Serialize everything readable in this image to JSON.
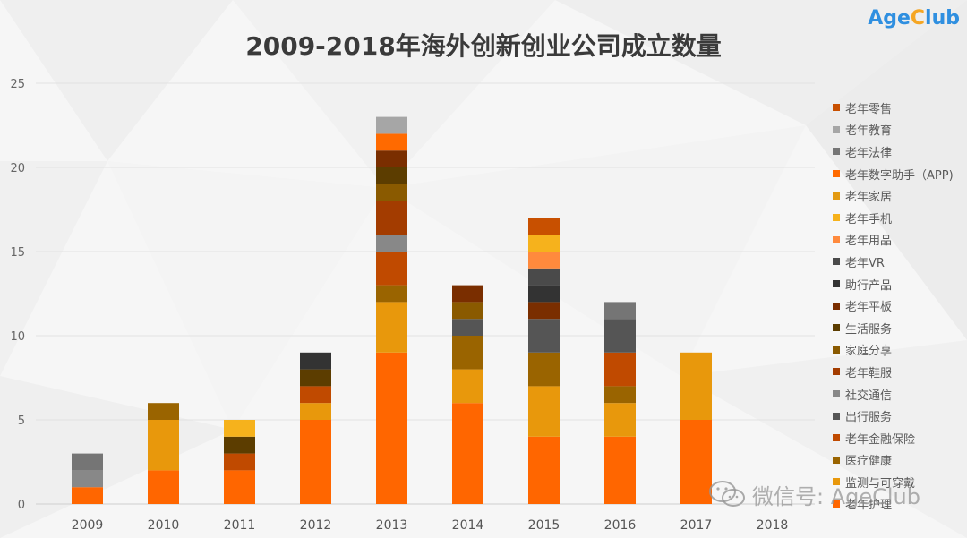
{
  "title": "2009-2018年海外创新创业公司成立数量",
  "brand": {
    "prefix": "Age",
    "accent": "C",
    "suffix": "lub"
  },
  "watermark": {
    "text": "微信号: AgeClub",
    "icon": "wechat-icon"
  },
  "colors": {
    "brand_blue": "#2f8fe0",
    "brand_orange": "#f5a623",
    "title": "#3a3a3a"
  },
  "chart_data": {
    "type": "bar",
    "stacked": true,
    "title": "2009-2018年海外创新创业公司成立数量",
    "categories": [
      "2009",
      "2010",
      "2011",
      "2012",
      "2013",
      "2014",
      "2015",
      "2016",
      "2017",
      "2018"
    ],
    "ylim": [
      0,
      25
    ],
    "yticks": [
      0,
      5,
      10,
      15,
      20,
      25
    ],
    "grid": true,
    "legend_position": "right",
    "series": [
      {
        "name": "老年护理",
        "color": "#ff6600",
        "values": [
          1,
          2,
          2,
          5,
          9,
          6,
          4,
          4,
          5,
          0
        ]
      },
      {
        "name": "监测与可穿戴",
        "color": "#e8980c",
        "values": [
          0,
          3,
          0,
          1,
          3,
          2,
          3,
          2,
          4,
          0
        ]
      },
      {
        "name": "医疗健康",
        "color": "#9a6400",
        "values": [
          0,
          1,
          0,
          0,
          1,
          2,
          2,
          1,
          0,
          0
        ]
      },
      {
        "name": "老年金融保险",
        "color": "#c04a00",
        "values": [
          0,
          0,
          1,
          1,
          2,
          0,
          0,
          2,
          0,
          0
        ]
      },
      {
        "name": "出行服务",
        "color": "#555555",
        "values": [
          0,
          0,
          0,
          0,
          0,
          1,
          2,
          2,
          0,
          0
        ]
      },
      {
        "name": "社交通信",
        "color": "#888888",
        "values": [
          1,
          0,
          0,
          0,
          1,
          0,
          0,
          0,
          0,
          0
        ]
      },
      {
        "name": "老年鞋服",
        "color": "#a33c00",
        "values": [
          0,
          0,
          0,
          0,
          2,
          0,
          0,
          0,
          0,
          0
        ]
      },
      {
        "name": "家庭分享",
        "color": "#8a5a00",
        "values": [
          0,
          0,
          0,
          0,
          1,
          1,
          0,
          0,
          0,
          0
        ]
      },
      {
        "name": "生活服务",
        "color": "#5c3d00",
        "values": [
          0,
          0,
          1,
          1,
          1,
          0,
          0,
          0,
          0,
          0
        ]
      },
      {
        "name": "老年平板",
        "color": "#7a2e00",
        "values": [
          0,
          0,
          0,
          0,
          1,
          1,
          1,
          0,
          0,
          0
        ]
      },
      {
        "name": "助行产品",
        "color": "#333333",
        "values": [
          0,
          0,
          0,
          1,
          0,
          0,
          1,
          0,
          0,
          0
        ]
      },
      {
        "name": "老年VR",
        "color": "#4a4a4a",
        "values": [
          0,
          0,
          0,
          0,
          0,
          0,
          1,
          0,
          0,
          0
        ]
      },
      {
        "name": "老年用品",
        "color": "#ff8a3d",
        "values": [
          0,
          0,
          0,
          0,
          0,
          0,
          1,
          0,
          0,
          0
        ]
      },
      {
        "name": "老年手机",
        "color": "#f6b21c",
        "values": [
          0,
          0,
          1,
          0,
          0,
          0,
          1,
          0,
          0,
          0
        ]
      },
      {
        "name": "老年家居",
        "color": "#e39a12",
        "values": [
          0,
          0,
          0,
          0,
          0,
          0,
          0,
          0,
          0,
          0
        ]
      },
      {
        "name": "老年数字助手（APP)",
        "color": "#ff6a00",
        "values": [
          0,
          0,
          0,
          0,
          1,
          0,
          0,
          0,
          0,
          0
        ]
      },
      {
        "name": "老年法律",
        "color": "#757575",
        "values": [
          1,
          0,
          0,
          0,
          0,
          0,
          0,
          1,
          0,
          0
        ]
      },
      {
        "name": "老年教育",
        "color": "#a6a6a6",
        "values": [
          0,
          0,
          0,
          0,
          1,
          0,
          0,
          0,
          0,
          0
        ]
      },
      {
        "name": "老年零售",
        "color": "#c85000",
        "values": [
          0,
          0,
          0,
          0,
          0,
          0,
          1,
          0,
          0,
          0
        ]
      }
    ],
    "legend_order": [
      "老年零售",
      "老年教育",
      "老年法律",
      "老年数字助手（APP)",
      "老年家居",
      "老年手机",
      "老年用品",
      "老年VR",
      "助行产品",
      "老年平板",
      "生活服务",
      "家庭分享",
      "老年鞋服",
      "社交通信",
      "出行服务",
      "老年金融保险",
      "医疗健康",
      "监测与可穿戴",
      "老年护理"
    ]
  }
}
